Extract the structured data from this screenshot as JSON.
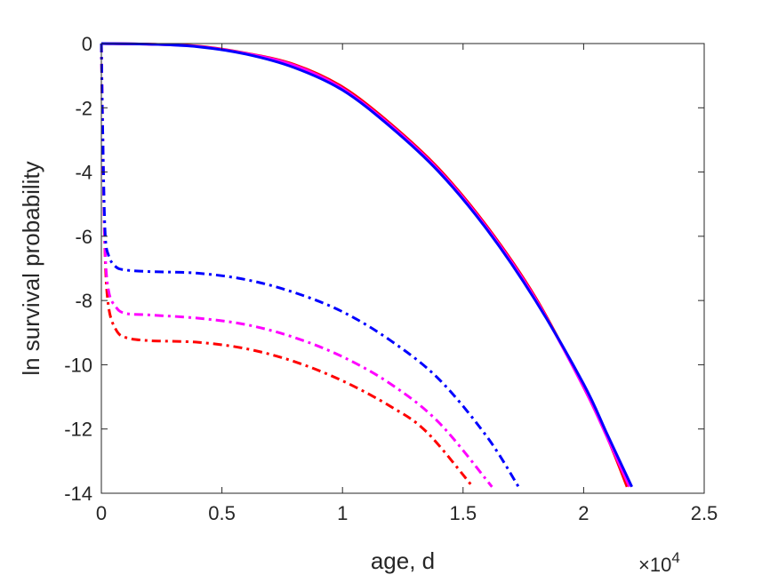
{
  "chart_data": {
    "type": "line",
    "xlabel": "age, d",
    "ylabel": "ln survival probability",
    "x_exponent_label": "×10",
    "x_exponent_power": "4",
    "xlim": [
      0,
      25000
    ],
    "ylim": [
      -14,
      0
    ],
    "x_ticks": [
      0,
      5000,
      10000,
      15000,
      20000,
      25000
    ],
    "x_tick_labels": [
      "0",
      "0.5",
      "1",
      "1.5",
      "2",
      "2.5"
    ],
    "y_ticks": [
      0,
      -2,
      -4,
      -6,
      -8,
      -10,
      -12,
      -14
    ],
    "y_tick_labels": [
      "0",
      "-2",
      "-4",
      "-6",
      "-8",
      "-10",
      "-12",
      "-14"
    ],
    "grid": false,
    "series": [
      {
        "color": "#ff0000",
        "style": "solid",
        "x": [
          0,
          2000,
          4000,
          6000,
          8000,
          10000,
          12000,
          14000,
          16000,
          18000,
          20000,
          21000,
          21800
        ],
        "y": [
          0,
          -0.02,
          -0.08,
          -0.3,
          -0.65,
          -1.35,
          -2.5,
          -3.9,
          -5.7,
          -7.9,
          -10.7,
          -12.3,
          -13.8
        ]
      },
      {
        "color": "#ff00ff",
        "style": "solid",
        "x": [
          0,
          2000,
          4000,
          6000,
          8000,
          10000,
          12000,
          14000,
          16000,
          18000,
          20000,
          21000,
          21900
        ],
        "y": [
          0,
          -0.02,
          -0.09,
          -0.31,
          -0.68,
          -1.4,
          -2.55,
          -3.95,
          -5.75,
          -7.95,
          -10.7,
          -12.3,
          -13.8
        ]
      },
      {
        "color": "#0000ff",
        "style": "solid",
        "x": [
          0,
          2000,
          4000,
          6000,
          8000,
          10000,
          12000,
          14000,
          16000,
          18000,
          20000,
          21000,
          22000
        ],
        "y": [
          0,
          -0.02,
          -0.1,
          -0.33,
          -0.75,
          -1.45,
          -2.6,
          -4.0,
          -5.8,
          -8.0,
          -10.6,
          -12.2,
          -13.8
        ]
      },
      {
        "color": "#ff0000",
        "style": "dashdot",
        "x": [
          0,
          50,
          150,
          300,
          600,
          1000,
          2000,
          4000,
          6000,
          8000,
          10000,
          12000,
          13500,
          15400
        ],
        "y": [
          0,
          -2.5,
          -6.5,
          -8.2,
          -8.9,
          -9.15,
          -9.25,
          -9.3,
          -9.5,
          -9.9,
          -10.5,
          -11.3,
          -12.1,
          -13.8
        ]
      },
      {
        "color": "#ff00ff",
        "style": "dashdot",
        "x": [
          0,
          50,
          150,
          300,
          600,
          1000,
          2000,
          4000,
          6000,
          8000,
          10000,
          12000,
          14000,
          16200
        ],
        "y": [
          0,
          -2.5,
          -6.3,
          -7.7,
          -8.2,
          -8.4,
          -8.45,
          -8.55,
          -8.75,
          -9.15,
          -9.75,
          -10.6,
          -11.8,
          -13.8
        ]
      },
      {
        "color": "#0000ff",
        "style": "dashdot",
        "x": [
          0,
          50,
          150,
          300,
          600,
          1000,
          2000,
          4000,
          6000,
          8000,
          10000,
          12000,
          14000,
          16000,
          17300
        ],
        "y": [
          0,
          -2.5,
          -5.8,
          -6.6,
          -6.95,
          -7.05,
          -7.1,
          -7.15,
          -7.35,
          -7.75,
          -8.35,
          -9.25,
          -10.45,
          -12.25,
          -13.8
        ]
      }
    ]
  }
}
